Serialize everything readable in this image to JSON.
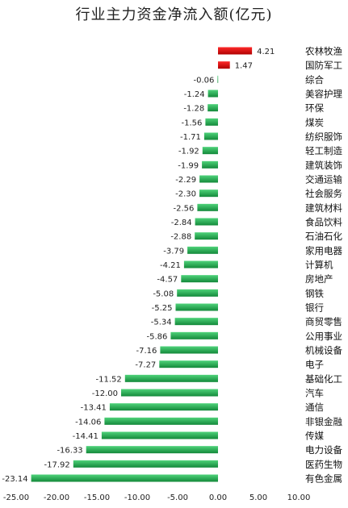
{
  "chart_data": {
    "type": "bar",
    "orientation": "horizontal",
    "title": "行业主力资金净流入额(亿元)",
    "xlim": [
      -25,
      10
    ],
    "xticks": [
      "-25.00",
      "-20.00",
      "-15.00",
      "-10.00",
      "-5.00",
      "0.00",
      "5.00",
      "10.00"
    ],
    "xtick_values": [
      -25,
      -20,
      -15,
      -10,
      -5,
      0,
      5,
      10
    ],
    "grid": false,
    "legend": "none",
    "colors": {
      "positive": "#d40000",
      "negative": "#1fa64c"
    },
    "categories": [
      "农林牧渔",
      "国防军工",
      "综合",
      "美容护理",
      "环保",
      "煤炭",
      "纺织服饰",
      "轻工制造",
      "建筑装饰",
      "交通运输",
      "社会服务",
      "建筑材料",
      "食品饮料",
      "石油石化",
      "家用电器",
      "计算机",
      "房地产",
      "钢铁",
      "银行",
      "商贸零售",
      "公用事业",
      "机械设备",
      "电子",
      "基础化工",
      "汽车",
      "通信",
      "非银金融",
      "传媒",
      "电力设备",
      "医药生物",
      "有色金属"
    ],
    "values": [
      4.21,
      1.47,
      -0.06,
      -1.24,
      -1.28,
      -1.56,
      -1.71,
      -1.92,
      -1.99,
      -2.29,
      -2.3,
      -2.56,
      -2.84,
      -2.88,
      -3.79,
      -4.21,
      -4.57,
      -5.08,
      -5.25,
      -5.34,
      -5.86,
      -7.16,
      -7.27,
      -11.52,
      -12.0,
      -13.41,
      -14.06,
      -14.41,
      -16.33,
      -17.92,
      -23.14
    ],
    "value_labels": [
      "4.21",
      "1.47",
      "-0.06",
      "-1.24",
      "-1.28",
      "-1.56",
      "-1.71",
      "-1.92",
      "-1.99",
      "-2.29",
      "-2.30",
      "-2.56",
      "-2.84",
      "-2.88",
      "-3.79",
      "-4.21",
      "-4.57",
      "-5.08",
      "-5.25",
      "-5.34",
      "-5.86",
      "-7.16",
      "-7.27",
      "-11.52",
      "-12.00",
      "-13.41",
      "-14.06",
      "-14.41",
      "-16.33",
      "-17.92",
      "-23.14"
    ]
  }
}
